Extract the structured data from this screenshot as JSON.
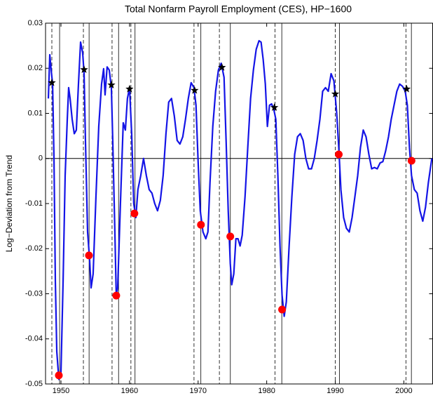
{
  "chart_data": {
    "type": "line",
    "title": "Total Nonfarm Payroll Employment (CES), HP−1600",
    "y_label": "Log−Deviation from Trend",
    "xlim": [
      1947.75,
      2004.2
    ],
    "ylim": [
      -0.05,
      0.03
    ],
    "xticks": [
      1950,
      1960,
      1970,
      1980,
      1990,
      2000
    ],
    "yticks": [
      -0.05,
      -0.04,
      -0.03,
      -0.02,
      -0.01,
      0,
      0.01,
      0.02,
      0.03
    ],
    "reference_line": 0,
    "peak_lines": [
      1948.67,
      1953.27,
      1957.45,
      1960.2,
      1969.4,
      1973.1,
      1981.2,
      1990.0,
      2000.3
    ],
    "trough_lines": [
      1949.8,
      1954.1,
      1958.4,
      1960.8,
      1970.4,
      1974.7,
      1982.2,
      1990.6,
      2001.1
    ],
    "series": [
      {
        "color": "#1414e6",
        "marker": "none",
        "x": [
          1948.16,
          1948.37,
          1948.57,
          1948.78,
          1948.98,
          1949.18,
          1949.39,
          1949.69,
          1950.0,
          1950.31,
          1950.61,
          1950.92,
          1951.12,
          1951.33,
          1951.63,
          1951.94,
          1952.24,
          1952.55,
          1952.86,
          1953.16,
          1953.37,
          1953.57,
          1953.88,
          1954.18,
          1954.39,
          1954.69,
          1955.1,
          1955.51,
          1955.92,
          1956.22,
          1956.43,
          1956.73,
          1957.04,
          1957.35,
          1957.55,
          1957.86,
          1958.06,
          1958.27,
          1958.67,
          1959.08,
          1959.39,
          1959.69,
          1960.0,
          1960.31,
          1960.61,
          1960.92,
          1961.22,
          1961.63,
          1962.04,
          1962.45,
          1962.86,
          1963.27,
          1963.67,
          1964.08,
          1964.49,
          1964.9,
          1965.31,
          1965.71,
          1966.12,
          1966.53,
          1966.94,
          1967.35,
          1967.76,
          1968.16,
          1968.57,
          1968.98,
          1969.39,
          1969.69,
          1970.0,
          1970.31,
          1970.71,
          1971.12,
          1971.43,
          1971.73,
          1972.14,
          1972.55,
          1972.96,
          1973.37,
          1973.78,
          1974.08,
          1974.39,
          1974.69,
          1974.9,
          1975.2,
          1975.51,
          1975.82,
          1976.12,
          1976.43,
          1976.84,
          1977.24,
          1977.65,
          1978.06,
          1978.47,
          1978.88,
          1979.18,
          1979.49,
          1979.8,
          1980.1,
          1980.41,
          1980.71,
          1981.02,
          1981.33,
          1981.63,
          1981.94,
          1982.24,
          1982.55,
          1982.86,
          1983.27,
          1983.67,
          1984.08,
          1984.49,
          1984.9,
          1985.31,
          1985.71,
          1986.12,
          1986.53,
          1986.94,
          1987.35,
          1987.76,
          1988.16,
          1988.57,
          1988.98,
          1989.39,
          1989.8,
          1990.2,
          1990.51,
          1990.82,
          1991.22,
          1991.63,
          1992.04,
          1992.45,
          1992.86,
          1993.27,
          1993.67,
          1994.08,
          1994.49,
          1994.9,
          1995.31,
          1995.71,
          1996.12,
          1996.53,
          1996.94,
          1997.35,
          1997.76,
          1998.16,
          1998.57,
          1998.98,
          1999.39,
          1999.8,
          2000.2,
          2000.51,
          2000.82,
          2001.12,
          2001.53,
          2001.94,
          2002.35,
          2002.76,
          2003.16,
          2003.57,
          2004.08
        ],
        "values": [
          0.0133,
          0.023,
          0.0196,
          0.0165,
          0.0,
          -0.0272,
          -0.0428,
          -0.049,
          -0.0474,
          -0.0272,
          -0.0038,
          0.0087,
          0.0157,
          0.0133,
          0.0087,
          0.0055,
          0.0063,
          0.0165,
          0.0258,
          0.0235,
          0.0188,
          0.004,
          -0.0163,
          -0.0225,
          -0.0287,
          -0.0256,
          -0.0085,
          0.0071,
          0.0165,
          0.0199,
          0.0141,
          0.0203,
          0.0196,
          0.0157,
          0.004,
          -0.0163,
          -0.0303,
          -0.0287,
          -0.01,
          0.0079,
          0.0063,
          0.0133,
          0.0157,
          0.0055,
          -0.01,
          -0.0131,
          -0.0069,
          -0.0038,
          0.0,
          -0.0038,
          -0.0069,
          -0.0077,
          -0.01,
          -0.0116,
          -0.0093,
          -0.0038,
          0.0055,
          0.0125,
          0.0133,
          0.0094,
          0.004,
          0.0032,
          0.0048,
          0.0087,
          0.0133,
          0.0168,
          0.0157,
          0.0118,
          -0.0007,
          -0.0116,
          -0.0163,
          -0.0178,
          -0.0163,
          -0.0054,
          0.0071,
          0.0149,
          0.0196,
          0.0211,
          0.018,
          0.004,
          -0.0116,
          -0.0233,
          -0.028,
          -0.0256,
          -0.0178,
          -0.0178,
          -0.0194,
          -0.017,
          -0.0085,
          0.0024,
          0.0133,
          0.0196,
          0.0242,
          0.0261,
          0.0258,
          0.0219,
          0.0165,
          0.0071,
          0.0118,
          0.0121,
          0.011,
          0.0087,
          -0.0038,
          -0.0194,
          -0.0303,
          -0.035,
          -0.0318,
          -0.0194,
          -0.0085,
          0.0009,
          0.0048,
          0.0055,
          0.004,
          0.0,
          -0.0023,
          -0.0023,
          0.0,
          0.004,
          0.0087,
          0.0149,
          0.0157,
          0.0149,
          0.0188,
          0.0172,
          0.0102,
          0.0024,
          -0.0069,
          -0.0131,
          -0.0155,
          -0.0163,
          -0.0131,
          -0.0085,
          -0.0038,
          0.0024,
          0.0063,
          0.0048,
          0.0009,
          -0.0023,
          -0.002,
          -0.0023,
          -0.001,
          -0.0007,
          0.0017,
          0.0048,
          0.0087,
          0.0118,
          0.0149,
          0.0165,
          0.016,
          0.0149,
          0.0118,
          0.0024,
          -0.0038,
          -0.0069,
          -0.0077,
          -0.0116,
          -0.0139,
          -0.0108,
          -0.0054,
          0.0
        ]
      },
      {
        "color": "#000000",
        "marker": "star",
        "x": [
          1948.67,
          1953.37,
          1957.35,
          1960.0,
          1969.49,
          1973.47,
          1981.12,
          1990.0,
          2000.41
        ],
        "values": [
          0.0168,
          0.0197,
          0.0163,
          0.0154,
          0.0151,
          0.0202,
          0.0113,
          0.0143,
          0.0154
        ]
      },
      {
        "color": "#ff0000",
        "marker": "circle",
        "x": [
          1949.69,
          1954.08,
          1958.06,
          1960.71,
          1970.41,
          1974.69,
          1982.24,
          1990.51,
          2001.12
        ],
        "values": [
          -0.0481,
          -0.0215,
          -0.0304,
          -0.0122,
          -0.0147,
          -0.0173,
          -0.0335,
          0.0009,
          -0.0005
        ]
      }
    ]
  }
}
